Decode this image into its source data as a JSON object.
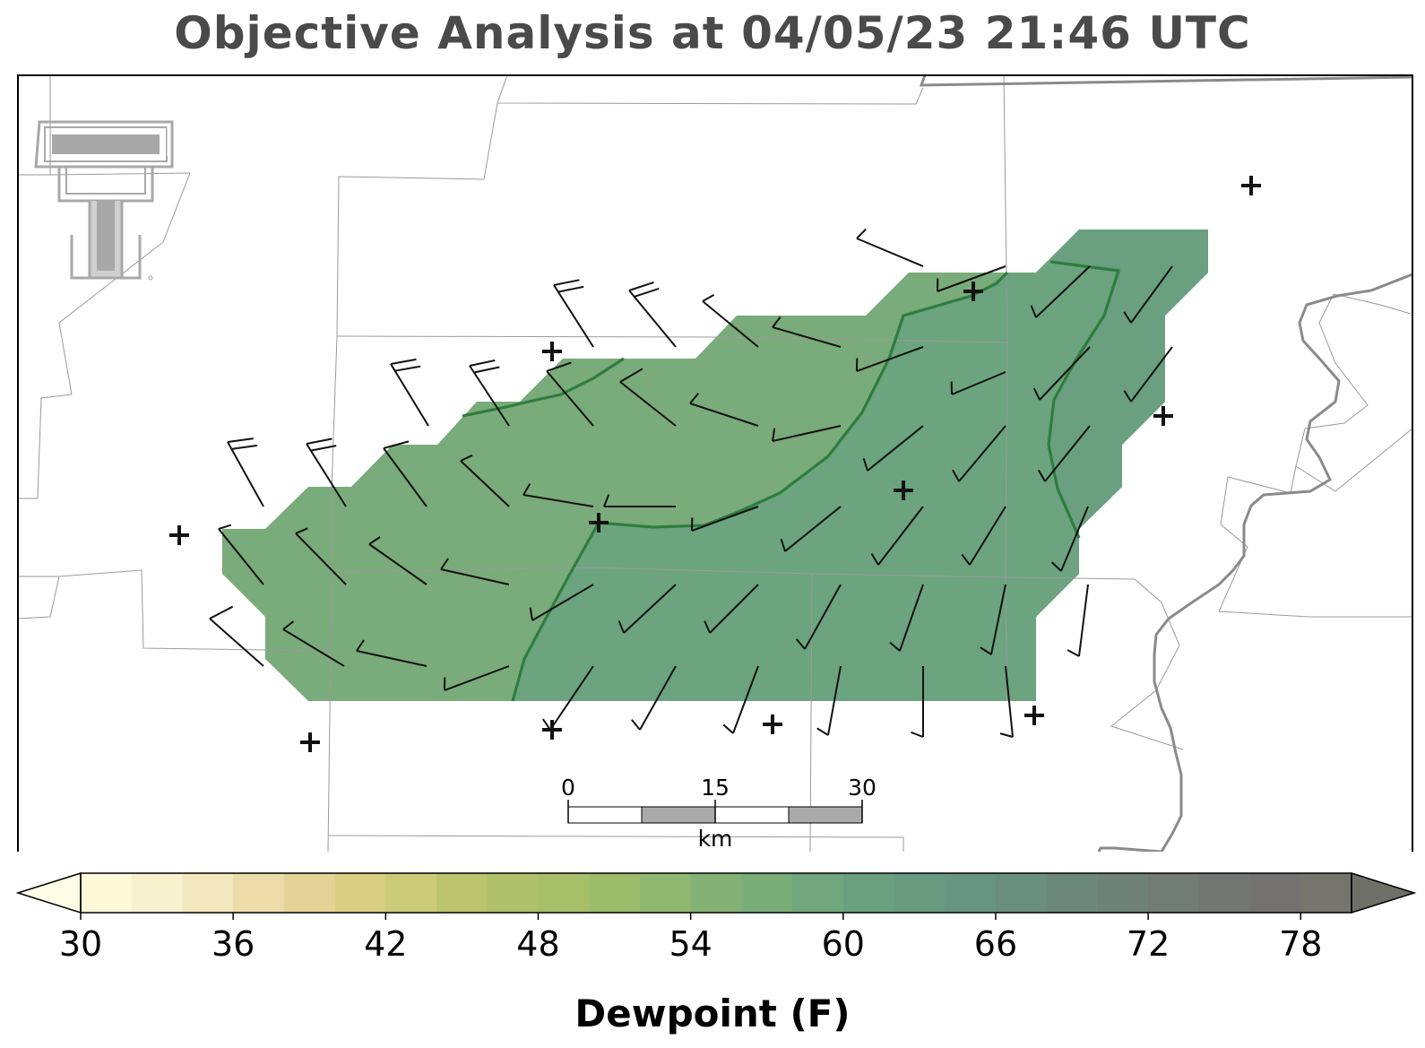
{
  "title": "Objective Analysis at 04/05/23 21:46 UTC",
  "logo": {
    "name": "texas-tech-double-t-logo",
    "color": "#a8a8a8"
  },
  "map": {
    "field": "Dewpoint",
    "contour_color": "#2e7d3e",
    "station_marker": "+",
    "scale_bar": {
      "ticks": [
        "0",
        "15",
        "30"
      ],
      "unit": "km"
    }
  },
  "colorbar": {
    "label": "Dewpoint (F)",
    "ticks": [
      "30",
      "36",
      "42",
      "48",
      "54",
      "60",
      "66",
      "72",
      "78"
    ],
    "min": 30,
    "max": 80,
    "step": 2,
    "extend": "both",
    "colors": [
      "#fdf9d9",
      "#f8f1cf",
      "#f2e7be",
      "#ebdcaa",
      "#e4d396",
      "#d8cf83",
      "#cccc78",
      "#bcc56e",
      "#b0c06a",
      "#a8bf6a",
      "#9cbc6c",
      "#90b770",
      "#84b276",
      "#7aac7a",
      "#72a77d",
      "#6ba07f",
      "#689b80",
      "#679580",
      "#698e7d",
      "#6c887b",
      "#6e8278",
      "#707c75",
      "#727673",
      "#737270",
      "#75756e"
    ],
    "under_color": "#fffde6",
    "over_color": "#6e7068"
  }
}
